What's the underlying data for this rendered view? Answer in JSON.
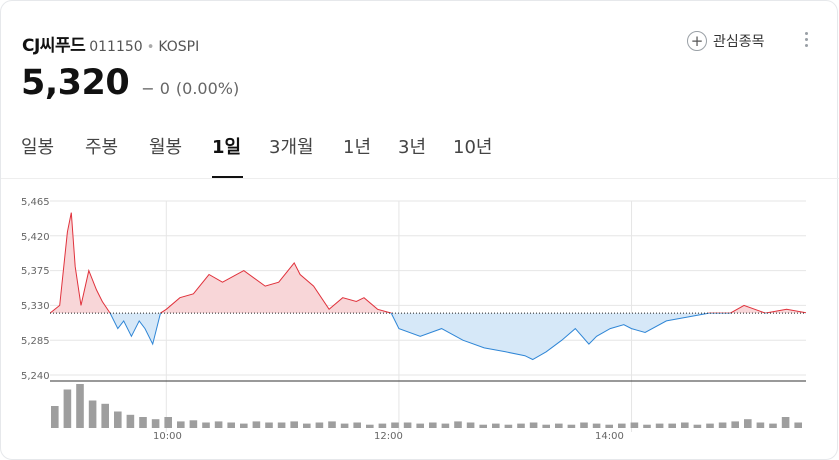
{
  "stock": {
    "name": "CJ씨푸드",
    "code": "011150",
    "separator": "•",
    "market": "KOSPI",
    "price": "5,320",
    "change": "− 0",
    "change_pct": "(0.00%)"
  },
  "actions": {
    "watch_plus": "+",
    "watch_label": "관심종목"
  },
  "tabs": [
    {
      "label": "일봉",
      "active": false
    },
    {
      "label": "주봉",
      "active": false
    },
    {
      "label": "월봉",
      "active": false
    },
    {
      "label": "1일",
      "active": true
    },
    {
      "label": "3개월",
      "active": false
    },
    {
      "label": "1년",
      "active": false
    },
    {
      "label": "3년",
      "active": false
    },
    {
      "label": "10년",
      "active": false
    }
  ],
  "colors": {
    "up": "#e0323c",
    "up_fill": "#f8d6d8",
    "down": "#2f86d6",
    "down_fill": "#d6e8f8",
    "volume": "#9e9e9e",
    "grid": "#e6e6e6"
  },
  "chart_data": {
    "type": "line",
    "interval": "1일",
    "reference_price": 5320,
    "y_ticks": [
      "5,465",
      "5,420",
      "5,375",
      "5,330",
      "5,285",
      "5,240"
    ],
    "y_tick_values": [
      5465,
      5420,
      5375,
      5330,
      5285,
      5240
    ],
    "ylim": [
      5240,
      5465
    ],
    "x_ticks": [
      "10:00",
      "12:00",
      "14:00"
    ],
    "series": [
      {
        "x": [
          "09:00",
          "09:05",
          "09:09",
          "09:11",
          "09:13",
          "09:16",
          "09:20",
          "09:24",
          "09:27",
          "09:31",
          "09:35",
          "09:38",
          "09:42",
          "09:46",
          "09:49",
          "09:53",
          "09:57",
          "10:00",
          "10:07",
          "10:14",
          "10:22",
          "10:29",
          "10:40",
          "10:51",
          "10:58",
          "11:06",
          "11:09",
          "11:16",
          "11:24",
          "11:31",
          "11:38",
          "11:42",
          "11:49",
          "11:56",
          "12:00",
          "12:11",
          "12:22",
          "12:33",
          "12:44",
          "12:55",
          "13:05",
          "13:09",
          "13:16",
          "13:24",
          "13:31",
          "13:38",
          "13:42",
          "13:49",
          "13:56",
          "14:00",
          "14:07",
          "14:18",
          "14:29",
          "14:40",
          "14:51",
          "14:58",
          "15:09",
          "15:20",
          "15:31",
          "15:42"
        ],
        "values": [
          5320,
          5330,
          5425,
          5450,
          5380,
          5330,
          5375,
          5350,
          5335,
          5320,
          5300,
          5310,
          5290,
          5310,
          5300,
          5280,
          5320,
          5325,
          5340,
          5345,
          5370,
          5360,
          5375,
          5355,
          5360,
          5385,
          5370,
          5355,
          5325,
          5340,
          5335,
          5340,
          5325,
          5320,
          5300,
          5290,
          5300,
          5285,
          5275,
          5270,
          5265,
          5260,
          5270,
          5285,
          5300,
          5280,
          5290,
          5300,
          5305,
          5300,
          5295,
          5310,
          5315,
          5320,
          5320,
          5330,
          5320,
          5325,
          5320,
          5320
        ]
      }
    ],
    "volume": [
      20,
      35,
      40,
      25,
      22,
      15,
      12,
      10,
      8,
      10,
      6,
      7,
      5,
      6,
      5,
      4,
      6,
      5,
      5,
      6,
      4,
      5,
      6,
      4,
      5,
      3,
      4,
      5,
      5,
      4,
      5,
      4,
      6,
      5,
      3,
      4,
      3,
      4,
      5,
      3,
      4,
      3,
      5,
      4,
      3,
      4,
      5,
      3,
      4,
      4,
      5,
      3,
      4,
      5,
      6,
      8,
      5,
      4,
      10,
      5
    ]
  }
}
